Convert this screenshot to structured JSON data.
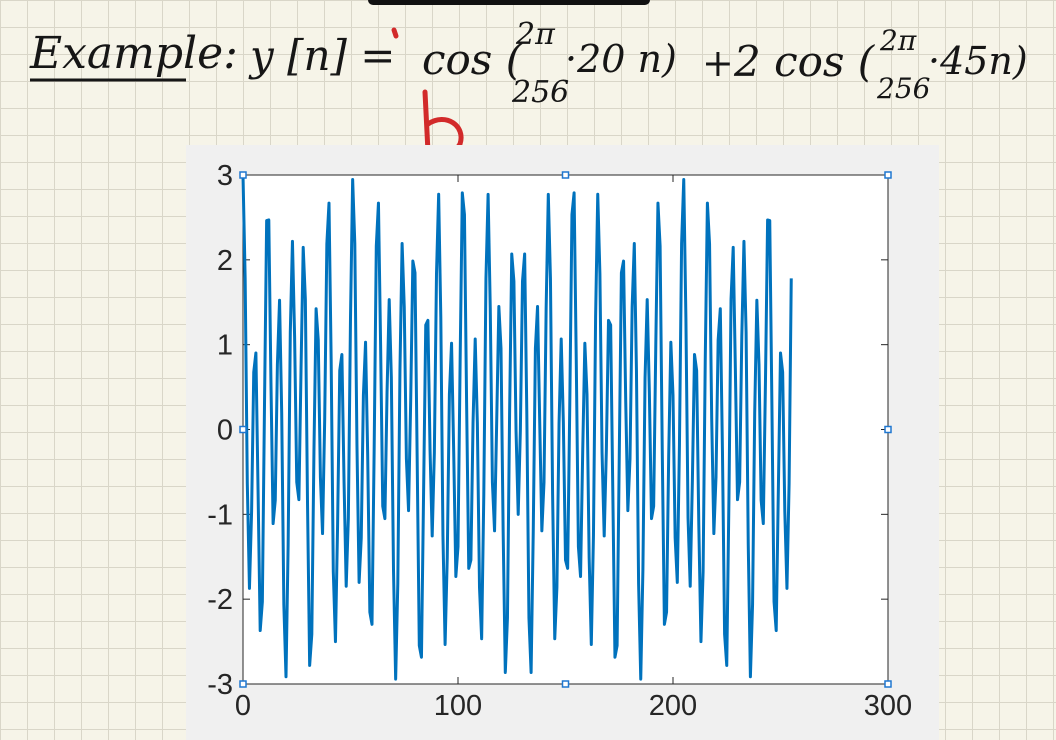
{
  "handwriting": {
    "label": "Example:",
    "equation": "y[n] = cos(2π/256 · 20 n) + 2 cos(2π/256 · 45n)",
    "lhs": "y [n] =",
    "cos1": "cos (",
    "num1": "2π",
    "den1": "256",
    "arg1": "·20 n)",
    "plus": "+",
    "cos2": "2 cos (",
    "num2": "2π",
    "den2": "256",
    "arg2": "·45n)",
    "annotation_color": "#d22a2a",
    "ink_color": "#161616"
  },
  "chart_data": {
    "type": "line",
    "title": "",
    "xlabel": "",
    "ylabel": "",
    "xlim": [
      0,
      300
    ],
    "ylim": [
      -3,
      3
    ],
    "xticks": [
      "0",
      "100",
      "200",
      "300"
    ],
    "yticks": [
      "3",
      "2",
      "1",
      "0",
      "-1",
      "-2",
      "-3"
    ],
    "grid": false,
    "legend": "none",
    "line_color": "#0072bd",
    "series": [
      {
        "n_start": 0,
        "n_end": 255,
        "formula": "cos(2π/256·20n) + 2cos(2π/256·45n)",
        "amplitudes": [
          1,
          2
        ],
        "frequencies_cycles_per_256": [
          20,
          45
        ]
      }
    ]
  }
}
